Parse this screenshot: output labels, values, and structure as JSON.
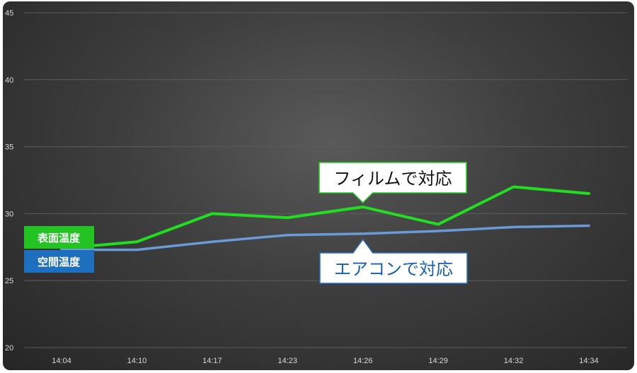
{
  "chart_data": {
    "type": "line",
    "categories": [
      "14:04",
      "14:10",
      "14:17",
      "14:23",
      "14:26",
      "14:29",
      "14:32",
      "14:34"
    ],
    "ylim": [
      20,
      45
    ],
    "yticks": [
      "20",
      "25",
      "30",
      "35",
      "40",
      "45"
    ],
    "grid": true,
    "series": [
      {
        "name": "表面温度",
        "color": "#22dd22",
        "values": [
          27.4,
          27.9,
          30.0,
          29.7,
          30.5,
          29.2,
          32.0,
          31.5
        ]
      },
      {
        "name": "空間温度",
        "color": "#6a9bd6",
        "values": [
          27.3,
          27.3,
          27.9,
          28.4,
          28.5,
          28.7,
          29.0,
          29.1
        ]
      }
    ],
    "series_label_colors": [
      "#22c322",
      "#1f6fbf"
    ],
    "annotations": [
      {
        "text": "フィルムで対応",
        "color": "#111111",
        "border": "#22cc22",
        "anchor_index": 4,
        "series": 0
      },
      {
        "text": "エアコンで対応",
        "color": "#1a5fb0",
        "border": "#2a6fc6",
        "anchor_index": 4,
        "series": 1
      }
    ]
  }
}
